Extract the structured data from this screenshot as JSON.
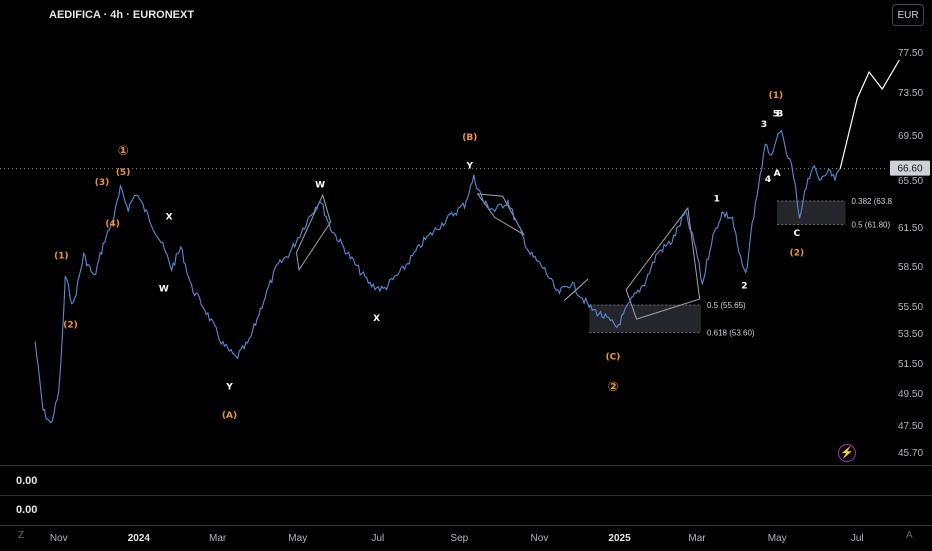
{
  "header": {
    "title": "AEDIFICA · 4h · EURONEXT",
    "currency": "EUR"
  },
  "current_price": "66.60",
  "indicators": {
    "pane1_value": "0.00",
    "pane2_value": "0.00"
  },
  "corner": {
    "left": "Z",
    "right": "A"
  },
  "chart_data": {
    "type": "line",
    "title": "AEDIFICA · 4h · EURONEXT",
    "x_ticks": [
      "Nov",
      "2024",
      "Mar",
      "May",
      "Jul",
      "Sep",
      "Nov",
      "2025",
      "Mar",
      "May",
      "Jul"
    ],
    "y_ticks": [
      "77.50",
      "73.50",
      "69.50",
      "65.50",
      "61.50",
      "58.50",
      "55.50",
      "53.50",
      "51.50",
      "49.50",
      "47.50",
      "45.70"
    ],
    "y_tick_values": [
      77.5,
      73.5,
      69.5,
      65.5,
      61.5,
      58.5,
      55.5,
      53.5,
      51.5,
      49.5,
      47.5,
      45.7
    ],
    "ylim": [
      45.7,
      77.5
    ],
    "current_price": 66.6,
    "series": [
      {
        "values": [
          {
            "x": "2023-10-14",
            "y": 53.0
          },
          {
            "x": "2023-10-20",
            "y": 48.5
          },
          {
            "x": "2023-10-26",
            "y": 47.6
          },
          {
            "x": "2023-11-01",
            "y": 49.5
          },
          {
            "x": "2023-11-04",
            "y": 53.6
          },
          {
            "x": "2023-11-06",
            "y": 57.8
          },
          {
            "x": "2023-11-12",
            "y": 55.6
          },
          {
            "x": "2023-11-20",
            "y": 59.4
          },
          {
            "x": "2023-11-28",
            "y": 57.7
          },
          {
            "x": "2023-12-06",
            "y": 60.6
          },
          {
            "x": "2023-12-12",
            "y": 62.0
          },
          {
            "x": "2023-12-18",
            "y": 64.8
          },
          {
            "x": "2023-12-24",
            "y": 63.2
          },
          {
            "x": "2023-12-30",
            "y": 64.5
          },
          {
            "x": "2024-01-08",
            "y": 62.5
          },
          {
            "x": "2024-01-18",
            "y": 60.4
          },
          {
            "x": "2024-01-26",
            "y": 58.4
          },
          {
            "x": "2024-02-02",
            "y": 60.0
          },
          {
            "x": "2024-02-10",
            "y": 57.0
          },
          {
            "x": "2024-02-20",
            "y": 55.4
          },
          {
            "x": "2024-03-05",
            "y": 52.8
          },
          {
            "x": "2024-03-15",
            "y": 51.9
          },
          {
            "x": "2024-03-25",
            "y": 53.0
          },
          {
            "x": "2024-04-05",
            "y": 56.0
          },
          {
            "x": "2024-04-15",
            "y": 58.5
          },
          {
            "x": "2024-04-25",
            "y": 59.6
          },
          {
            "x": "2024-05-10",
            "y": 62.5
          },
          {
            "x": "2024-05-18",
            "y": 63.9
          },
          {
            "x": "2024-05-26",
            "y": 61.5
          },
          {
            "x": "2024-06-05",
            "y": 60.0
          },
          {
            "x": "2024-06-15",
            "y": 58.5
          },
          {
            "x": "2024-06-25",
            "y": 57.2
          },
          {
            "x": "2024-07-05",
            "y": 56.8
          },
          {
            "x": "2024-07-20",
            "y": 58.3
          },
          {
            "x": "2024-08-05",
            "y": 60.5
          },
          {
            "x": "2024-08-20",
            "y": 62.0
          },
          {
            "x": "2024-09-05",
            "y": 63.5
          },
          {
            "x": "2024-09-12",
            "y": 65.8
          },
          {
            "x": "2024-09-20",
            "y": 63.6
          },
          {
            "x": "2024-09-28",
            "y": 63.0
          },
          {
            "x": "2024-10-08",
            "y": 63.8
          },
          {
            "x": "2024-10-15",
            "y": 61.8
          },
          {
            "x": "2024-10-25",
            "y": 59.5
          },
          {
            "x": "2024-11-05",
            "y": 58.3
          },
          {
            "x": "2024-11-15",
            "y": 56.5
          },
          {
            "x": "2024-11-25",
            "y": 57.3
          },
          {
            "x": "2024-12-10",
            "y": 55.4
          },
          {
            "x": "2024-12-20",
            "y": 54.8
          },
          {
            "x": "2024-12-30",
            "y": 54.0
          },
          {
            "x": "2025-01-10",
            "y": 56.0
          },
          {
            "x": "2025-01-20",
            "y": 57.3
          },
          {
            "x": "2025-01-30",
            "y": 59.6
          },
          {
            "x": "2025-02-10",
            "y": 60.5
          },
          {
            "x": "2025-02-20",
            "y": 62.8
          },
          {
            "x": "2025-02-28",
            "y": 60.0
          },
          {
            "x": "2025-03-05",
            "y": 57.2
          },
          {
            "x": "2025-03-12",
            "y": 60.5
          },
          {
            "x": "2025-03-20",
            "y": 62.8
          },
          {
            "x": "2025-03-28",
            "y": 62.3
          },
          {
            "x": "2025-04-02",
            "y": 59.5
          },
          {
            "x": "2025-04-07",
            "y": 57.8
          },
          {
            "x": "2025-04-12",
            "y": 61.8
          },
          {
            "x": "2025-04-18",
            "y": 66.0
          },
          {
            "x": "2025-04-22",
            "y": 68.5
          },
          {
            "x": "2025-04-28",
            "y": 67.8
          },
          {
            "x": "2025-05-03",
            "y": 70.2
          },
          {
            "x": "2025-05-08",
            "y": 68.0
          },
          {
            "x": "2025-05-12",
            "y": 66.8
          },
          {
            "x": "2025-05-15",
            "y": 64.8
          },
          {
            "x": "2025-05-18",
            "y": 62.0
          },
          {
            "x": "2025-05-22",
            "y": 64.8
          },
          {
            "x": "2025-05-28",
            "y": 66.8
          },
          {
            "x": "2025-06-02",
            "y": 65.6
          },
          {
            "x": "2025-06-08",
            "y": 66.5
          },
          {
            "x": "2025-06-14",
            "y": 65.8
          },
          {
            "x": "2025-06-18",
            "y": 66.6
          }
        ]
      }
    ],
    "projection": [
      {
        "x": "2025-06-18",
        "y": 66.6
      },
      {
        "x": "2025-07-01",
        "y": 73.0
      },
      {
        "x": "2025-07-10",
        "y": 75.6
      },
      {
        "x": "2025-07-20",
        "y": 73.9
      },
      {
        "x": "2025-08-02",
        "y": 78.2
      }
    ],
    "horizontal_line": 66.6,
    "fib_zones": [
      {
        "x_start": "2024-12-09",
        "x_end": "2025-03-04",
        "top": 55.65,
        "bottom": 53.6,
        "labels": [
          "0.5 (55.65)",
          "0.618 (53.60)"
        ]
      },
      {
        "x_start": "2025-05-01",
        "x_end": "2025-06-22",
        "top": 63.8,
        "bottom": 61.8,
        "labels": [
          "0.382 (63.8",
          "0.5 (61.80)"
        ]
      }
    ],
    "wave_labels": [
      {
        "text": "①",
        "x": "2023-12-20",
        "y": 68.1,
        "color": "orange"
      },
      {
        "text": "(5)",
        "x": "2023-12-20",
        "y": 66.3,
        "color": "orange"
      },
      {
        "text": "(3)",
        "x": "2023-12-04",
        "y": 65.4,
        "color": "orange"
      },
      {
        "text": "(4)",
        "x": "2023-12-12",
        "y": 61.9,
        "color": "orange"
      },
      {
        "text": "(1)",
        "x": "2023-11-03",
        "y": 59.4,
        "color": "orange"
      },
      {
        "text": "(2)",
        "x": "2023-11-10",
        "y": 54.2,
        "color": "orange"
      },
      {
        "text": "X",
        "x": "2024-01-24",
        "y": 62.5,
        "color": "white"
      },
      {
        "text": "W",
        "x": "2024-01-20",
        "y": 56.9,
        "color": "white"
      },
      {
        "text": "Y",
        "x": "2024-03-10",
        "y": 50.0,
        "color": "white"
      },
      {
        "text": "(A)",
        "x": "2024-03-10",
        "y": 48.2,
        "color": "orange"
      },
      {
        "text": "W",
        "x": "2024-05-18",
        "y": 65.2,
        "color": "white"
      },
      {
        "text": "X",
        "x": "2024-06-30",
        "y": 54.7,
        "color": "white"
      },
      {
        "text": "(B)",
        "x": "2024-09-09",
        "y": 69.4,
        "color": "orange"
      },
      {
        "text": "Y",
        "x": "2024-09-09",
        "y": 66.9,
        "color": "white"
      },
      {
        "text": "(C)",
        "x": "2024-12-27",
        "y": 52.0,
        "color": "orange"
      },
      {
        "text": "②",
        "x": "2024-12-27",
        "y": 49.9,
        "color": "orange"
      },
      {
        "text": "1",
        "x": "2025-03-16",
        "y": 64.0,
        "color": "white"
      },
      {
        "text": "2",
        "x": "2025-04-06",
        "y": 57.1,
        "color": "white"
      },
      {
        "text": "3",
        "x": "2025-04-21",
        "y": 70.6,
        "color": "white"
      },
      {
        "text": "(1)",
        "x": "2025-04-30",
        "y": 73.3,
        "color": "orange"
      },
      {
        "text": "5",
        "x": "2025-04-30",
        "y": 71.6,
        "color": "white"
      },
      {
        "text": "B",
        "x": "2025-05-03",
        "y": 71.6,
        "color": "white"
      },
      {
        "text": "A",
        "x": "2025-05-01",
        "y": 66.2,
        "color": "white"
      },
      {
        "text": "4",
        "x": "2025-04-24",
        "y": 65.7,
        "color": "white"
      },
      {
        "text": "C",
        "x": "2025-05-16",
        "y": 61.1,
        "color": "white"
      },
      {
        "text": "(2)",
        "x": "2025-05-16",
        "y": 59.6,
        "color": "orange"
      }
    ]
  }
}
